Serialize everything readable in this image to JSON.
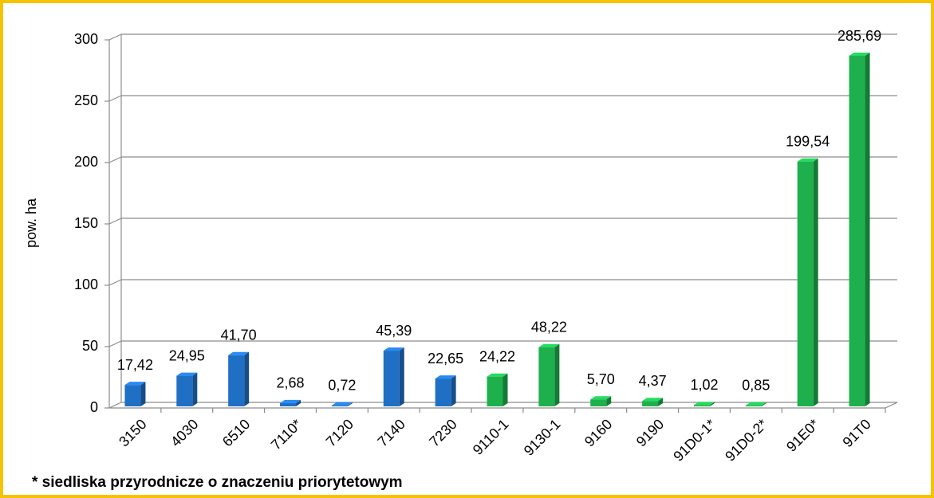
{
  "chart_data": {
    "type": "bar",
    "y_label": "pow. ha",
    "footnote": "* siedliska przyrodnicze o znaczeniu priorytetowym",
    "categories": [
      "3150",
      "4030",
      "6510",
      "7110*",
      "7120",
      "7140",
      "7230",
      "9110-1",
      "9130-1",
      "9160",
      "9190",
      "91D0-1*",
      "91D0-2*",
      "91E0*",
      "91T0"
    ],
    "values": [
      17.42,
      24.95,
      41.7,
      2.68,
      0.72,
      45.39,
      22.65,
      24.22,
      48.22,
      5.7,
      4.37,
      1.02,
      0.85,
      199.54,
      285.69
    ],
    "value_labels": [
      "17,42",
      "24,95",
      "41,70",
      "2,68",
      "0,72",
      "45,39",
      "22,65",
      "24,22",
      "48,22",
      "5,70",
      "4,37",
      "1,02",
      "0,85",
      "199,54",
      "285,69"
    ],
    "colors": [
      "#1f6fc5",
      "#1f6fc5",
      "#1f6fc5",
      "#1f6fc5",
      "#1f6fc5",
      "#1f6fc5",
      "#1f6fc5",
      "#1db04c",
      "#1db04c",
      "#1db04c",
      "#1db04c",
      "#1db04c",
      "#1db04c",
      "#1db04c",
      "#1db04c"
    ],
    "ylim": [
      0,
      300
    ],
    "yticks": [
      0,
      50,
      100,
      150,
      200,
      250,
      300
    ],
    "grid": true
  }
}
